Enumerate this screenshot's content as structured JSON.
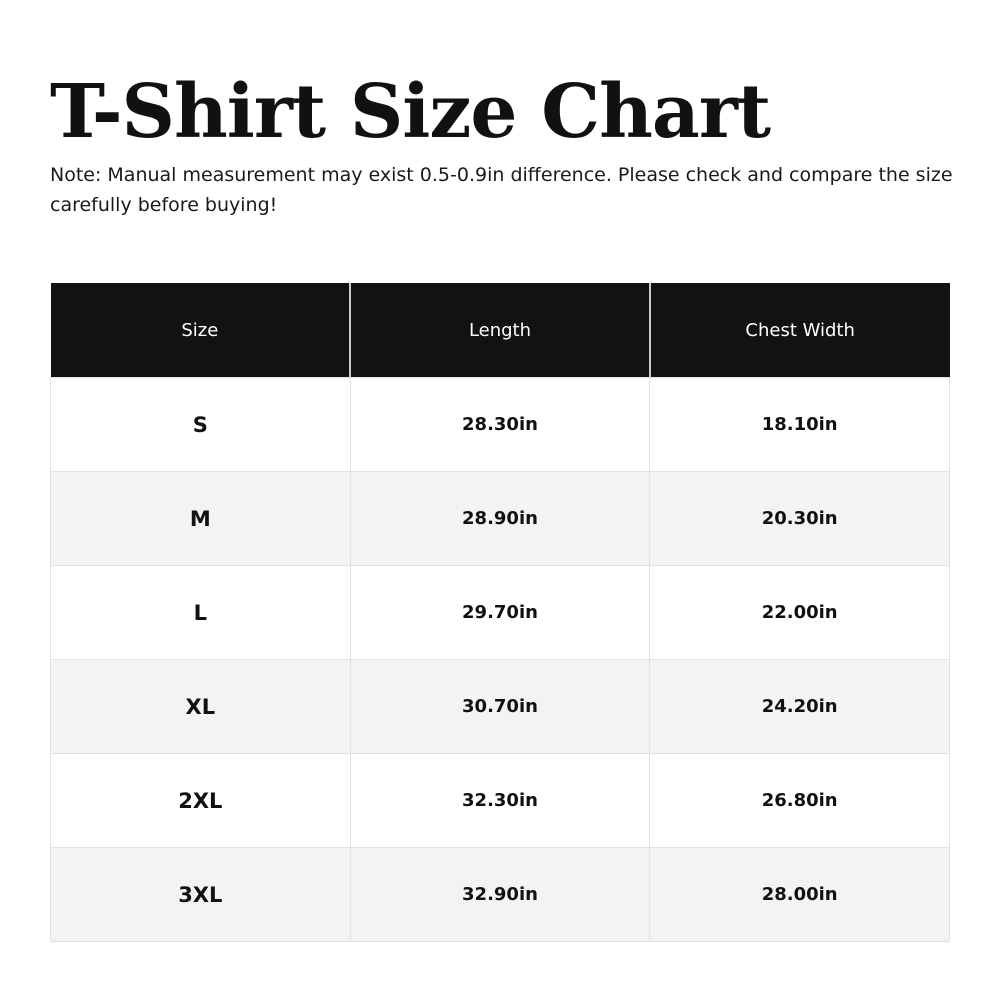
{
  "title": "T-Shirt Size Chart",
  "note": "Note: Manual measurement may exist 0.5-0.9in difference. Please check and compare the size carefully before buying!",
  "table": {
    "headers": [
      "Size",
      "Length",
      "Chest Width"
    ],
    "rows": [
      [
        "S",
        "28.30in",
        "18.10in"
      ],
      [
        "M",
        "28.90in",
        "20.30in"
      ],
      [
        "L",
        "29.70in",
        "22.00in"
      ],
      [
        "XL",
        "30.70in",
        "24.20in"
      ],
      [
        "2XL",
        "32.30in",
        "26.80in"
      ],
      [
        "3XL",
        "32.90in",
        "28.00in"
      ]
    ]
  },
  "colors": {
    "header_bg": "#121212",
    "header_text": "#ffffff",
    "alt_row_bg": "#f3f3f3"
  }
}
